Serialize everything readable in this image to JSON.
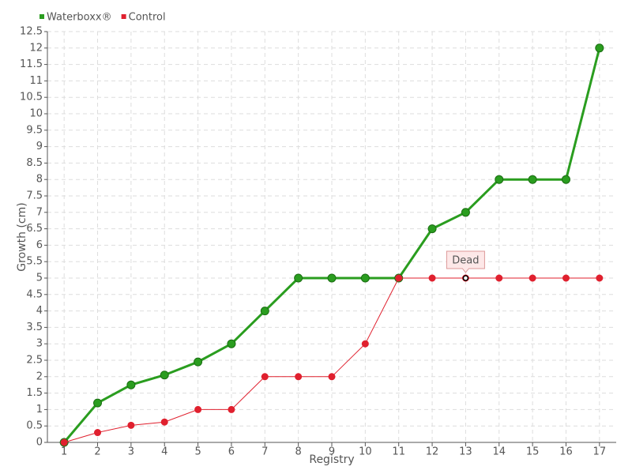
{
  "chart_data": {
    "type": "line",
    "x_label": "Registry",
    "y_label": "Growth (cm)",
    "x": [
      1,
      2,
      3,
      4,
      5,
      6,
      7,
      8,
      9,
      10,
      11,
      12,
      13,
      14,
      15,
      16,
      17
    ],
    "series": [
      {
        "name": "Waterboxx®",
        "color": "#2a9d1f",
        "values": [
          0,
          1.2,
          1.75,
          2.05,
          2.45,
          3,
          4,
          5,
          5,
          5,
          5,
          6.5,
          7,
          8,
          8,
          8,
          12
        ]
      },
      {
        "name": "Control",
        "color": "#e0202e",
        "values": [
          0,
          0.3,
          0.52,
          0.62,
          1,
          1,
          2,
          2,
          2,
          3,
          5,
          5,
          5,
          5,
          5,
          5,
          5
        ]
      }
    ],
    "annotations": [
      {
        "text": "Dead",
        "x": 13,
        "y": 5
      }
    ],
    "xlim": [
      0.5,
      17.5
    ],
    "ylim": [
      0,
      12.5
    ],
    "xticks": [
      1,
      2,
      3,
      4,
      5,
      6,
      7,
      8,
      9,
      10,
      11,
      12,
      13,
      14,
      15,
      16,
      17
    ],
    "yticks": [
      0,
      0.5,
      1,
      1.5,
      2,
      2.5,
      3,
      3.5,
      4,
      4.5,
      5,
      5.5,
      6,
      6.5,
      7,
      7.5,
      8,
      8.5,
      9,
      9.5,
      10,
      10.5,
      11,
      11.5,
      12,
      12.5
    ],
    "grid": true,
    "legend": "top-left"
  }
}
